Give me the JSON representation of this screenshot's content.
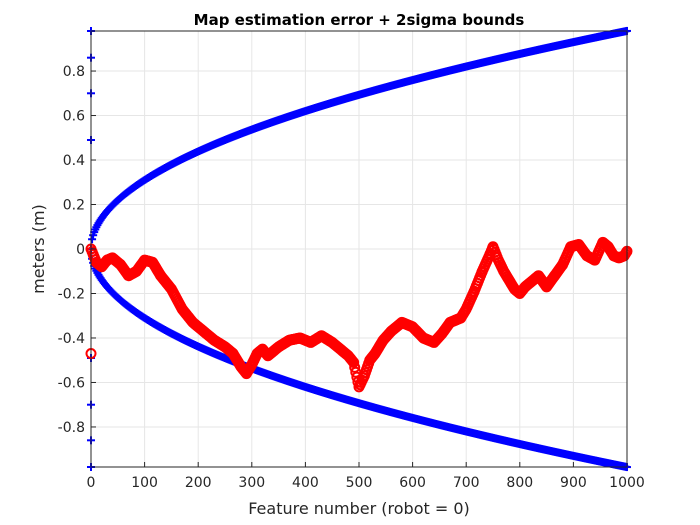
{
  "chart_data": {
    "type": "scatter",
    "title": "Map estimation error + 2sigma bounds",
    "xlabel": "Feature number (robot = 0)",
    "ylabel": "meters (m)",
    "xlim": [
      0,
      1000
    ],
    "ylim": [
      -0.98,
      0.98
    ],
    "xticks": [
      0,
      100,
      200,
      300,
      400,
      500,
      600,
      700,
      800,
      900,
      1000
    ],
    "yticks": [
      -0.8,
      -0.6,
      -0.4,
      -0.2,
      0,
      0.2,
      0.4,
      0.6,
      0.8
    ],
    "xtick_labels": [
      "0",
      "100",
      "200",
      "300",
      "400",
      "500",
      "600",
      "700",
      "800",
      "900",
      "1000"
    ],
    "ytick_labels": [
      "-0.8",
      "-0.6",
      "-0.4",
      "-0.2",
      "0",
      "0.2",
      "0.4",
      "0.6",
      "0.8"
    ],
    "grid": true,
    "colors": {
      "bounds": "#0000ff",
      "error": "#ff0000",
      "grid": "#e6e6e6",
      "axis": "#262626"
    },
    "bounds": {
      "marker": "plus",
      "coefficient": 0.031,
      "x_start": 0,
      "x_end": 1000,
      "step": 2,
      "x0_markers_y": [
        0.98,
        0.86,
        0.7,
        0.49,
        -0.49,
        -0.7,
        -0.86,
        -0.98
      ]
    },
    "series": [
      {
        "marker": "circle",
        "x": [
          0,
          10,
          20,
          30,
          40,
          55,
          70,
          85,
          100,
          115,
          130,
          150,
          170,
          190,
          210,
          230,
          250,
          265,
          280,
          290,
          300,
          310,
          320,
          330,
          350,
          370,
          390,
          410,
          430,
          450,
          460,
          470,
          480,
          490,
          500,
          510,
          520,
          530,
          545,
          560,
          580,
          600,
          620,
          640,
          655,
          670,
          690,
          700,
          715,
          730,
          745,
          750,
          760,
          770,
          780,
          790,
          800,
          810,
          820,
          835,
          850,
          865,
          880,
          895,
          910,
          925,
          940,
          955,
          965,
          975,
          985,
          995,
          1000
        ],
        "y": [
          0.0,
          -0.06,
          -0.08,
          -0.05,
          -0.04,
          -0.07,
          -0.12,
          -0.1,
          -0.05,
          -0.06,
          -0.12,
          -0.18,
          -0.27,
          -0.33,
          -0.37,
          -0.41,
          -0.44,
          -0.47,
          -0.53,
          -0.56,
          -0.52,
          -0.47,
          -0.45,
          -0.48,
          -0.44,
          -0.41,
          -0.4,
          -0.42,
          -0.39,
          -0.42,
          -0.44,
          -0.46,
          -0.48,
          -0.51,
          -0.62,
          -0.57,
          -0.5,
          -0.47,
          -0.41,
          -0.37,
          -0.33,
          -0.35,
          -0.4,
          -0.42,
          -0.38,
          -0.33,
          -0.31,
          -0.27,
          -0.19,
          -0.1,
          -0.02,
          0.01,
          -0.05,
          -0.1,
          -0.14,
          -0.18,
          -0.2,
          -0.17,
          -0.15,
          -0.12,
          -0.17,
          -0.12,
          -0.07,
          0.01,
          0.02,
          -0.03,
          -0.05,
          0.03,
          0.01,
          -0.03,
          -0.04,
          -0.03,
          -0.01
        ],
        "outlier": {
          "x": 0,
          "y": -0.47
        }
      }
    ]
  }
}
